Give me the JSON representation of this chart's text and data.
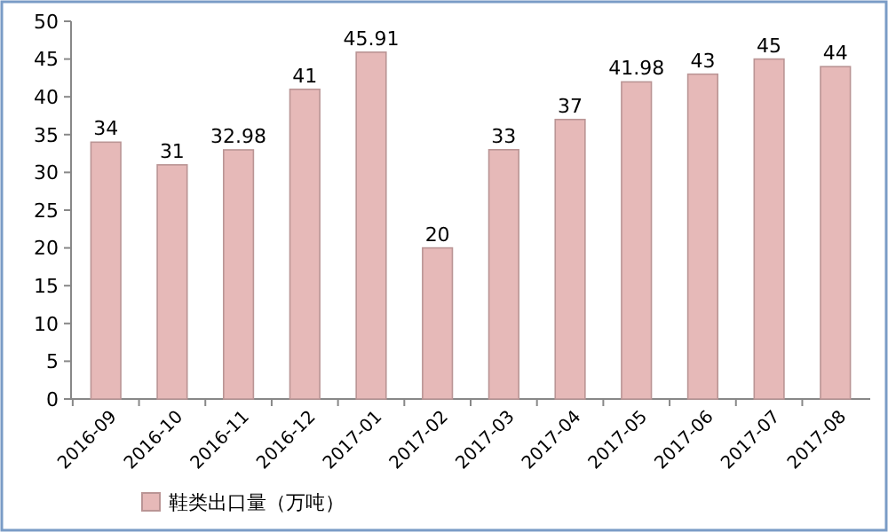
{
  "chart_data": {
    "type": "bar",
    "categories": [
      "2016-09",
      "2016-10",
      "2016-11",
      "2016-12",
      "2017-01",
      "2017-02",
      "2017-03",
      "2017-04",
      "2017-05",
      "2017-06",
      "2017-07",
      "2017-08"
    ],
    "series": [
      {
        "name": "鞋类出口量（万吨）",
        "color": "#e6b9b8",
        "values": [
          34,
          31,
          32.98,
          41,
          45.91,
          20,
          33,
          37,
          41.98,
          43,
          45,
          44
        ]
      }
    ],
    "ylim": [
      0,
      50
    ],
    "yticks": [
      0,
      5,
      10,
      15,
      20,
      25,
      30,
      35,
      40,
      45,
      50
    ],
    "grid": false,
    "legend": "bottom",
    "data_labels": true
  }
}
